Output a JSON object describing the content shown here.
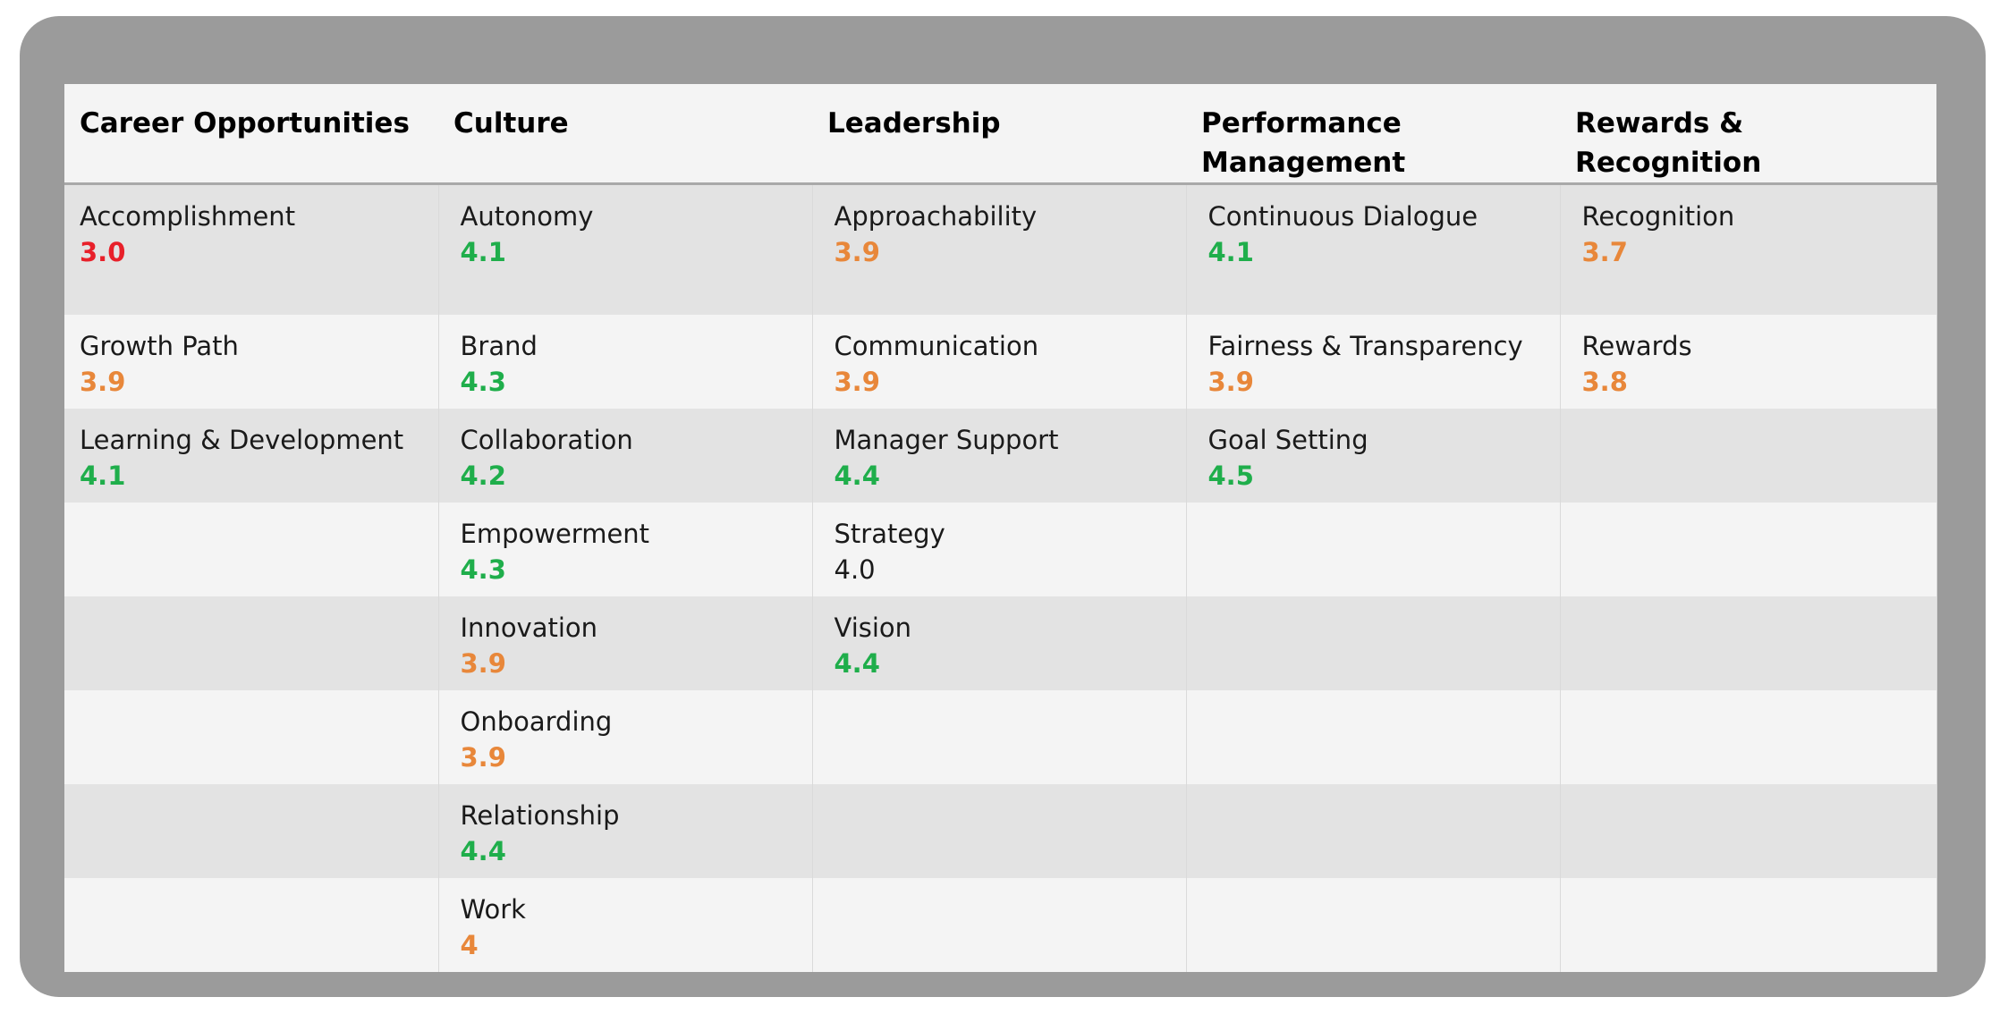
{
  "colors": {
    "red": "#e8202a",
    "orange": "#e8873a",
    "green": "#1fae4b",
    "neutral": "#1a1a1a"
  },
  "columns": [
    {
      "label": "Career Opportunities"
    },
    {
      "label": "Culture"
    },
    {
      "label": "Leadership"
    },
    {
      "label": "Performance Management"
    },
    {
      "label": "Rewards & Recognition"
    }
  ],
  "rows": [
    [
      {
        "label": "Accomplishment",
        "value": "3.0",
        "tone": "red"
      },
      {
        "label": "Autonomy",
        "value": "4.1",
        "tone": "green"
      },
      {
        "label": "Approachability",
        "value": "3.9",
        "tone": "orange"
      },
      {
        "label": "Continuous Dialogue",
        "value": "4.1",
        "tone": "green"
      },
      {
        "label": "Recognition",
        "value": "3.7",
        "tone": "orange"
      }
    ],
    [
      {
        "label": "Growth Path",
        "value": "3.9",
        "tone": "orange"
      },
      {
        "label": "Brand",
        "value": "4.3",
        "tone": "green"
      },
      {
        "label": "Communication",
        "value": "3.9",
        "tone": "orange"
      },
      {
        "label": "Fairness & Transparency",
        "value": "3.9",
        "tone": "orange"
      },
      {
        "label": "Rewards",
        "value": "3.8",
        "tone": "orange"
      }
    ],
    [
      {
        "label": "Learning & Development",
        "value": "4.1",
        "tone": "green"
      },
      {
        "label": "Collaboration",
        "value": "4.2",
        "tone": "green"
      },
      {
        "label": "Manager Support",
        "value": "4.4",
        "tone": "green"
      },
      {
        "label": "Goal Setting",
        "value": "4.5",
        "tone": "green"
      },
      null
    ],
    [
      null,
      {
        "label": "Empowerment",
        "value": "4.3",
        "tone": "green"
      },
      {
        "label": "Strategy",
        "value": "4.0",
        "tone": "plain"
      },
      null,
      null
    ],
    [
      null,
      {
        "label": "Innovation",
        "value": "3.9",
        "tone": "orange"
      },
      {
        "label": "Vision",
        "value": "4.4",
        "tone": "green"
      },
      null,
      null
    ],
    [
      null,
      {
        "label": "Onboarding",
        "value": "3.9",
        "tone": "orange"
      },
      null,
      null,
      null
    ],
    [
      null,
      {
        "label": "Relationship",
        "value": "4.4",
        "tone": "green"
      },
      null,
      null,
      null
    ],
    [
      null,
      {
        "label": "Work",
        "value": "4",
        "tone": "orange"
      },
      null,
      null,
      null
    ]
  ]
}
